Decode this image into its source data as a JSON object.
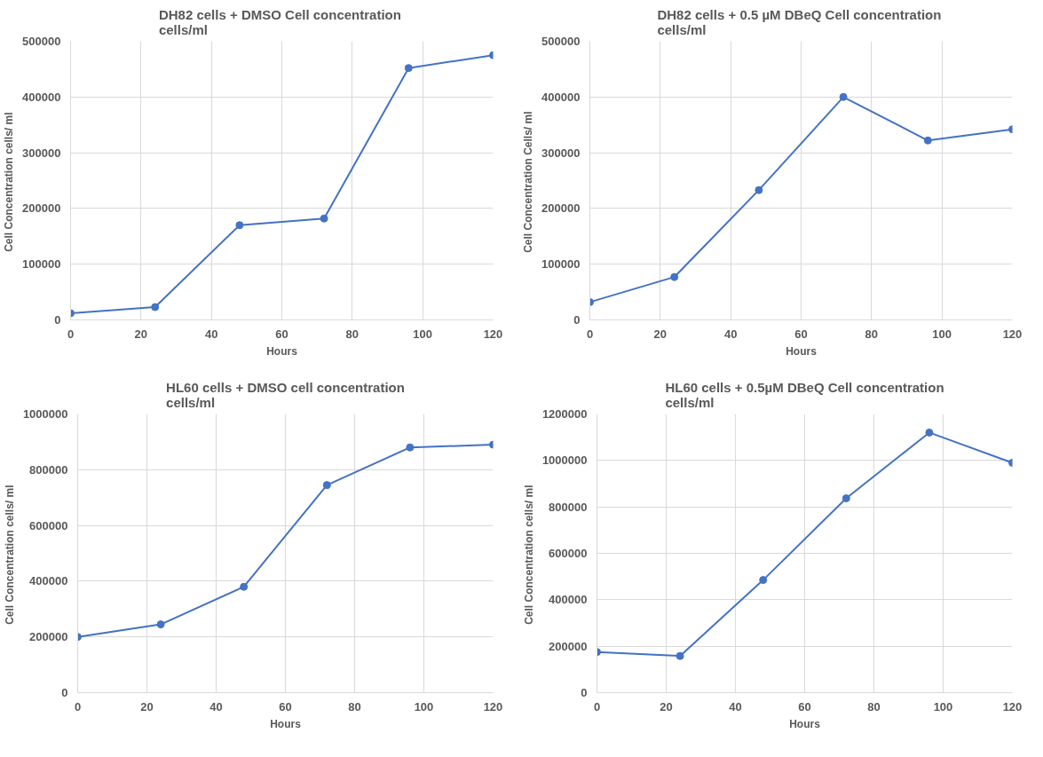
{
  "chart_data": [
    {
      "type": "line",
      "title": "DH82 cells + DMSO  Cell concentration\ncells/ml",
      "xlabel": "Hours",
      "ylabel": "Cell Concentration  cells/ ml",
      "x": [
        0,
        24,
        48,
        72,
        96,
        120
      ],
      "series": [
        {
          "color": "#4472c4",
          "values": [
            12000,
            23000,
            170000,
            182000,
            452000,
            475000
          ]
        }
      ],
      "xlim": [
        0,
        120
      ],
      "xticks": [
        0,
        20,
        40,
        60,
        80,
        100,
        120
      ],
      "ylim": [
        0,
        500000
      ],
      "yticks": [
        0,
        100000,
        200000,
        300000,
        400000,
        500000
      ],
      "grid": true,
      "marker": "circle",
      "line_style": "solid"
    },
    {
      "type": "line",
      "title": "DH82 cells + 0.5 µM DBeQ  Cell concentration\ncells/ml",
      "xlabel": "Hours",
      "ylabel": "Cell Concentration  Cells/ ml",
      "x": [
        0,
        24,
        48,
        72,
        96,
        120
      ],
      "series": [
        {
          "color": "#4472c4",
          "values": [
            32000,
            77000,
            233000,
            400000,
            322000,
            342000
          ]
        }
      ],
      "xlim": [
        0,
        120
      ],
      "xticks": [
        0,
        20,
        40,
        60,
        80,
        100,
        120
      ],
      "ylim": [
        0,
        500000
      ],
      "yticks": [
        0,
        100000,
        200000,
        300000,
        400000,
        500000
      ],
      "grid": true,
      "marker": "circle",
      "line_style": "solid"
    },
    {
      "type": "line",
      "title": "HL60 cells + DMSO cell concentration\ncells/ml",
      "xlabel": "Hours",
      "ylabel": "Cell Concentration  cells/ ml",
      "x": [
        0,
        24,
        48,
        72,
        96,
        120
      ],
      "series": [
        {
          "color": "#4472c4",
          "values": [
            200000,
            245000,
            380000,
            745000,
            880000,
            890000
          ]
        }
      ],
      "xlim": [
        0,
        120
      ],
      "xticks": [
        0,
        20,
        40,
        60,
        80,
        100,
        120
      ],
      "ylim": [
        0,
        1000000
      ],
      "yticks": [
        0,
        200000,
        400000,
        600000,
        800000,
        1000000
      ],
      "grid": true,
      "marker": "circle",
      "line_style": "solid"
    },
    {
      "type": "line",
      "title": "HL60 cells + 0.5µM DBeQ Cell concentration\ncells/ml",
      "xlabel": "Hours",
      "ylabel": "Cell Concentration  cells/ ml",
      "x": [
        0,
        24,
        48,
        72,
        96,
        120
      ],
      "series": [
        {
          "color": "#4472c4",
          "values": [
            175000,
            158000,
            485000,
            837000,
            1120000,
            990000
          ]
        }
      ],
      "xlim": [
        0,
        120
      ],
      "xticks": [
        0,
        20,
        40,
        60,
        80,
        100,
        120
      ],
      "ylim": [
        0,
        1200000
      ],
      "yticks": [
        0,
        200000,
        400000,
        600000,
        800000,
        1000000,
        1200000
      ],
      "grid": true,
      "marker": "circle",
      "line_style": "solid"
    }
  ]
}
